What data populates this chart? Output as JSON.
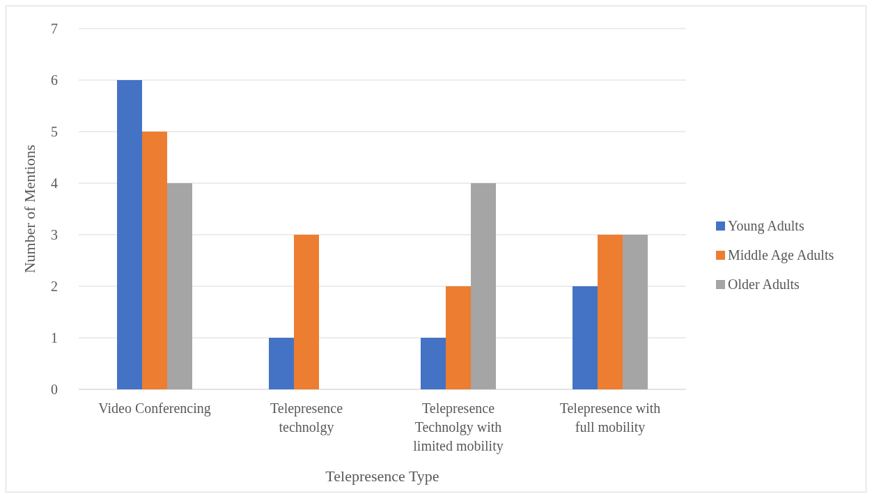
{
  "chart_data": {
    "type": "bar",
    "xlabel": "Telepresence Type",
    "ylabel": "Number of Mentions",
    "categories": [
      "Video Conferencing",
      "Telepresence technolgy",
      "Telepresence Technolgy with limited mobility",
      "Telepresence with full mobility"
    ],
    "series": [
      {
        "name": "Young Adults",
        "color": "#4472c4",
        "values": [
          6,
          1,
          1,
          2
        ]
      },
      {
        "name": "Middle Age Adults",
        "color": "#ed7d31",
        "values": [
          5,
          3,
          2,
          3
        ]
      },
      {
        "name": "Older Adults",
        "color": "#a5a5a5",
        "values": [
          4,
          0,
          4,
          3
        ]
      }
    ],
    "ylim": [
      0,
      7
    ],
    "yticks": [
      0,
      1,
      2,
      3,
      4,
      5,
      6,
      7
    ],
    "grid": "y",
    "legend": "right"
  }
}
